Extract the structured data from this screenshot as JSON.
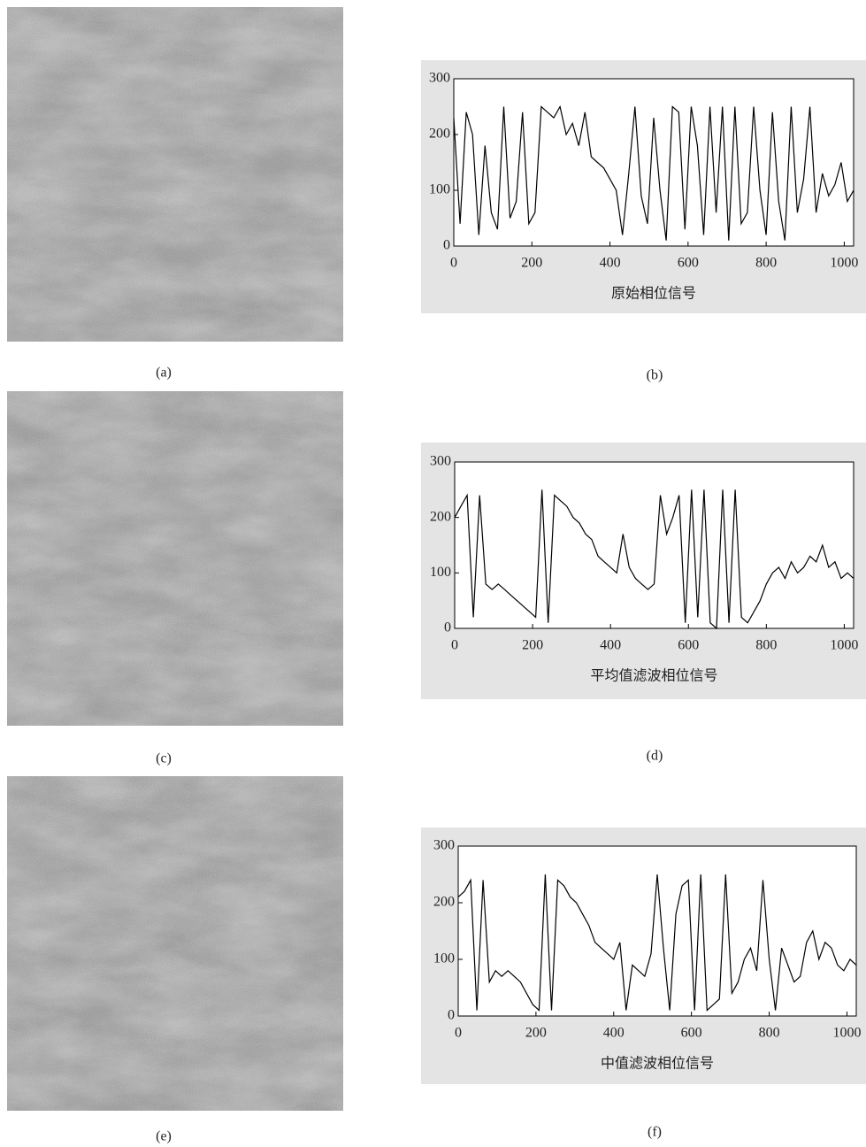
{
  "images": [
    {
      "caption": "(a)"
    },
    {
      "caption": "(c)"
    },
    {
      "caption": "(e)"
    }
  ],
  "chart_data": [
    {
      "type": "line",
      "caption": "(b)",
      "xlabel": "原始相位信号",
      "color": "#000000",
      "xlim": [
        0,
        1024
      ],
      "ylim": [
        0,
        300
      ],
      "xticks": [
        0,
        200,
        400,
        600,
        800,
        1000
      ],
      "yticks": [
        0,
        100,
        200,
        300
      ],
      "x": [
        0,
        16,
        32,
        48,
        64,
        80,
        96,
        112,
        128,
        144,
        160,
        176,
        192,
        208,
        224,
        240,
        256,
        272,
        288,
        304,
        320,
        336,
        352,
        368,
        384,
        400,
        416,
        432,
        448,
        464,
        480,
        496,
        512,
        528,
        544,
        560,
        576,
        592,
        608,
        624,
        640,
        656,
        672,
        688,
        704,
        720,
        736,
        752,
        768,
        784,
        800,
        816,
        832,
        848,
        864,
        880,
        896,
        912,
        928,
        944,
        960,
        976,
        992,
        1008,
        1024
      ],
      "values": [
        230,
        40,
        240,
        200,
        20,
        180,
        60,
        30,
        250,
        50,
        80,
        240,
        40,
        60,
        250,
        240,
        230,
        250,
        200,
        220,
        180,
        240,
        160,
        150,
        140,
        120,
        100,
        20,
        130,
        250,
        90,
        40,
        230,
        100,
        10,
        250,
        240,
        30,
        250,
        180,
        20,
        250,
        60,
        250,
        10,
        250,
        40,
        60,
        250,
        100,
        20,
        240,
        80,
        10,
        250,
        60,
        120,
        250,
        60,
        130,
        90,
        110,
        150,
        80,
        100
      ]
    },
    {
      "type": "line",
      "caption": "(d)",
      "xlabel": "平均值滤波相位信号",
      "color": "#000000",
      "xlim": [
        0,
        1024
      ],
      "ylim": [
        0,
        300
      ],
      "xticks": [
        0,
        200,
        400,
        600,
        800,
        1000
      ],
      "yticks": [
        0,
        100,
        200,
        300
      ],
      "x": [
        0,
        16,
        32,
        48,
        64,
        80,
        96,
        112,
        128,
        144,
        160,
        176,
        192,
        208,
        224,
        240,
        256,
        272,
        288,
        304,
        320,
        336,
        352,
        368,
        384,
        400,
        416,
        432,
        448,
        464,
        480,
        496,
        512,
        528,
        544,
        560,
        576,
        592,
        608,
        624,
        640,
        656,
        672,
        688,
        704,
        720,
        736,
        752,
        768,
        784,
        800,
        816,
        832,
        848,
        864,
        880,
        896,
        912,
        928,
        944,
        960,
        976,
        992,
        1008,
        1024
      ],
      "values": [
        200,
        220,
        240,
        20,
        240,
        80,
        70,
        80,
        70,
        60,
        50,
        40,
        30,
        20,
        250,
        10,
        240,
        230,
        220,
        200,
        190,
        170,
        160,
        130,
        120,
        110,
        100,
        170,
        110,
        90,
        80,
        70,
        80,
        240,
        170,
        200,
        240,
        10,
        250,
        20,
        250,
        10,
        0,
        250,
        10,
        250,
        20,
        10,
        30,
        50,
        80,
        100,
        110,
        90,
        120,
        100,
        110,
        130,
        120,
        150,
        110,
        120,
        90,
        100,
        90
      ]
    },
    {
      "type": "line",
      "caption": "(f)",
      "xlabel": "中值滤波相位信号",
      "color": "#000000",
      "xlim": [
        0,
        1024
      ],
      "ylim": [
        0,
        300
      ],
      "xticks": [
        0,
        200,
        400,
        600,
        800,
        1000
      ],
      "yticks": [
        0,
        100,
        200,
        300
      ],
      "x": [
        0,
        16,
        32,
        48,
        64,
        80,
        96,
        112,
        128,
        144,
        160,
        176,
        192,
        208,
        224,
        240,
        256,
        272,
        288,
        304,
        320,
        336,
        352,
        368,
        384,
        400,
        416,
        432,
        448,
        464,
        480,
        496,
        512,
        528,
        544,
        560,
        576,
        592,
        608,
        624,
        640,
        656,
        672,
        688,
        704,
        720,
        736,
        752,
        768,
        784,
        800,
        816,
        832,
        848,
        864,
        880,
        896,
        912,
        928,
        944,
        960,
        976,
        992,
        1008,
        1024
      ],
      "values": [
        210,
        220,
        240,
        10,
        240,
        60,
        80,
        70,
        80,
        70,
        60,
        40,
        20,
        10,
        250,
        10,
        240,
        230,
        210,
        200,
        180,
        160,
        130,
        120,
        110,
        100,
        130,
        10,
        90,
        80,
        70,
        110,
        250,
        120,
        10,
        180,
        230,
        240,
        10,
        250,
        10,
        20,
        30,
        250,
        40,
        60,
        100,
        120,
        80,
        240,
        100,
        10,
        120,
        90,
        60,
        70,
        130,
        150,
        100,
        130,
        120,
        90,
        80,
        100,
        90
      ]
    }
  ]
}
